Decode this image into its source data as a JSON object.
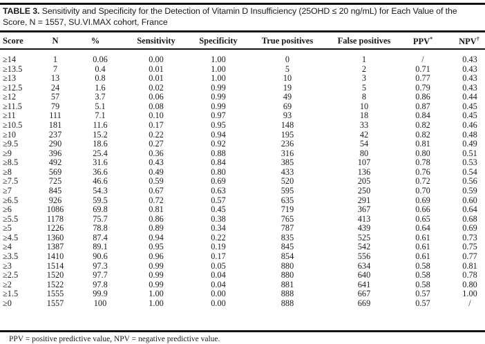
{
  "caption": {
    "label": "TABLE 3.",
    "text": "Sensitivity and Specificity for the Detection of Vitamin D Insufficiency (25OHD ≤ 20 ng/mL) for Each Value of the Score, N = 1557, SU.VI.MAX cohort, France"
  },
  "headers": [
    "Score",
    "N",
    "%",
    "Sensitivity",
    "Specificity",
    "True positives",
    "False positives",
    "PPV",
    "NPV"
  ],
  "header_marks": {
    "ppv": "*",
    "npv": "†"
  },
  "rows": [
    [
      "≥14",
      "1",
      "0.06",
      "0.00",
      "1.00",
      "0",
      "1",
      "/",
      "0.43"
    ],
    [
      "≥13.5",
      "7",
      "0.4",
      "0.01",
      "1.00",
      "5",
      "2",
      "0.71",
      "0.43"
    ],
    [
      "≥13",
      "13",
      "0.8",
      "0.01",
      "1.00",
      "10",
      "3",
      "0.77",
      "0.43"
    ],
    [
      "≥12.5",
      "24",
      "1.6",
      "0.02",
      "0.99",
      "19",
      "5",
      "0.79",
      "0.43"
    ],
    [
      "≥12",
      "57",
      "3.7",
      "0.06",
      "0.99",
      "49",
      "8",
      "0.86",
      "0.44"
    ],
    [
      "≥11.5",
      "79",
      "5.1",
      "0.08",
      "0.99",
      "69",
      "10",
      "0.87",
      "0.45"
    ],
    [
      "≥11",
      "111",
      "7.1",
      "0.10",
      "0.97",
      "93",
      "18",
      "0.84",
      "0.45"
    ],
    [
      "≥10.5",
      "181",
      "11.6",
      "0.17",
      "0.95",
      "148",
      "33",
      "0.82",
      "0.46"
    ],
    [
      "≥10",
      "237",
      "15.2",
      "0.22",
      "0.94",
      "195",
      "42",
      "0.82",
      "0.48"
    ],
    [
      "≥9.5",
      "290",
      "18.6",
      "0.27",
      "0.92",
      "236",
      "54",
      "0.81",
      "0.49"
    ],
    [
      "≥9",
      "396",
      "25.4",
      "0.36",
      "0.88",
      "316",
      "80",
      "0.80",
      "0.51"
    ],
    [
      "≥8.5",
      "492",
      "31.6",
      "0.43",
      "0.84",
      "385",
      "107",
      "0.78",
      "0.53"
    ],
    [
      "≥8",
      "569",
      "36.6",
      "0.49",
      "0.80",
      "433",
      "136",
      "0.76",
      "0.54"
    ],
    [
      "≥7.5",
      "725",
      "46.6",
      "0.59",
      "0.69",
      "520",
      "205",
      "0.72",
      "0.56"
    ],
    [
      "≥7",
      "845",
      "54.3",
      "0.67",
      "0.63",
      "595",
      "250",
      "0.70",
      "0.59"
    ],
    [
      "≥6.5",
      "926",
      "59.5",
      "0.72",
      "0.57",
      "635",
      "291",
      "0.69",
      "0.60"
    ],
    [
      "≥6",
      "1086",
      "69.8",
      "0.81",
      "0.45",
      "719",
      "367",
      "0.66",
      "0.64"
    ],
    [
      "≥5.5",
      "1178",
      "75.7",
      "0.86",
      "0.38",
      "765",
      "413",
      "0.65",
      "0.68"
    ],
    [
      "≥5",
      "1226",
      "78.8",
      "0.89",
      "0.34",
      "787",
      "439",
      "0.64",
      "0.69"
    ],
    [
      "≥4.5",
      "1360",
      "87.4",
      "0.94",
      "0.22",
      "835",
      "525",
      "0.61",
      "0.73"
    ],
    [
      "≥4",
      "1387",
      "89.1",
      "0.95",
      "0.19",
      "845",
      "542",
      "0.61",
      "0.75"
    ],
    [
      "≥3.5",
      "1410",
      "90.6",
      "0.96",
      "0.17",
      "854",
      "556",
      "0.61",
      "0.77"
    ],
    [
      "≥3",
      "1514",
      "97.3",
      "0.99",
      "0.05",
      "880",
      "634",
      "0.58",
      "0.81"
    ],
    [
      "≥2.5",
      "1520",
      "97.7",
      "0.99",
      "0.04",
      "880",
      "640",
      "0.58",
      "0.78"
    ],
    [
      "≥2",
      "1522",
      "97.8",
      "0.99",
      "0.04",
      "881",
      "641",
      "0.58",
      "0.80"
    ],
    [
      "≥1.5",
      "1555",
      "99.9",
      "1.00",
      "0.00",
      "888",
      "667",
      "0.57",
      "1.00"
    ],
    [
      "≥0",
      "1557",
      "100",
      "1.00",
      "0.00",
      "888",
      "669",
      "0.57",
      "/"
    ]
  ],
  "footnote": "PPV = positive predictive value, NPV = negative predictive value."
}
